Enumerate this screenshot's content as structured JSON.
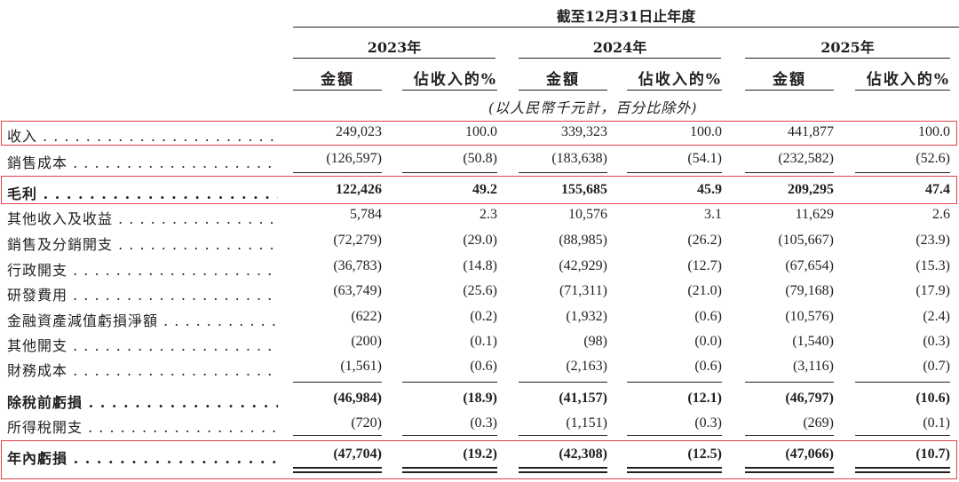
{
  "header": {
    "period_title": "截至12月31日止年度",
    "years": [
      "2023年",
      "2024年",
      "2025年"
    ],
    "col_amount": "金額",
    "col_pct": "佔收入的%",
    "unit_note": "(以人民幣千元計，百分比除外)"
  },
  "rows": [
    {
      "label": "收入",
      "bold": false,
      "values": [
        "249,023",
        "100.0",
        "339,323",
        "100.0",
        "441,877",
        "100.0"
      ]
    },
    {
      "label": "銷售成本",
      "bold": false,
      "values": [
        "(126,597)",
        "(50.8)",
        "(183,638)",
        "(54.1)",
        "(232,582)",
        "(52.6)"
      ]
    },
    {
      "label": "毛利",
      "bold": true,
      "values": [
        "122,426",
        "49.2",
        "155,685",
        "45.9",
        "209,295",
        "47.4"
      ]
    },
    {
      "label": "其他收入及收益",
      "bold": false,
      "values": [
        "5,784",
        "2.3",
        "10,576",
        "3.1",
        "11,629",
        "2.6"
      ]
    },
    {
      "label": "銷售及分銷開支",
      "bold": false,
      "values": [
        "(72,279)",
        "(29.0)",
        "(88,985)",
        "(26.2)",
        "(105,667)",
        "(23.9)"
      ]
    },
    {
      "label": "行政開支",
      "bold": false,
      "values": [
        "(36,783)",
        "(14.8)",
        "(42,929)",
        "(12.7)",
        "(67,654)",
        "(15.3)"
      ]
    },
    {
      "label": "研發費用",
      "bold": false,
      "values": [
        "(63,749)",
        "(25.6)",
        "(71,311)",
        "(21.0)",
        "(79,168)",
        "(17.9)"
      ]
    },
    {
      "label": "金融資產減值虧損淨額",
      "bold": false,
      "values": [
        "(622)",
        "(0.2)",
        "(1,932)",
        "(0.6)",
        "(10,576)",
        "(2.4)"
      ]
    },
    {
      "label": "其他開支",
      "bold": false,
      "values": [
        "(200)",
        "(0.1)",
        "(98)",
        "(0.0)",
        "(1,540)",
        "(0.3)"
      ]
    },
    {
      "label": "財務成本",
      "bold": false,
      "values": [
        "(1,561)",
        "(0.6)",
        "(2,163)",
        "(0.6)",
        "(3,116)",
        "(0.7)"
      ]
    },
    {
      "label": "除稅前虧損",
      "bold": true,
      "values": [
        "(46,984)",
        "(18.9)",
        "(41,157)",
        "(12.1)",
        "(46,797)",
        "(10.6)"
      ]
    },
    {
      "label": "所得稅開支",
      "bold": false,
      "values": [
        "(720)",
        "(0.3)",
        "(1,151)",
        "(0.3)",
        "(269)",
        "(0.1)"
      ]
    },
    {
      "label": "年內虧損",
      "bold": true,
      "values": [
        "(47,704)",
        "(19.2)",
        "(42,308)",
        "(12.5)",
        "(47,066)",
        "(10.7)"
      ]
    }
  ],
  "highlight_color": "#e0414b"
}
